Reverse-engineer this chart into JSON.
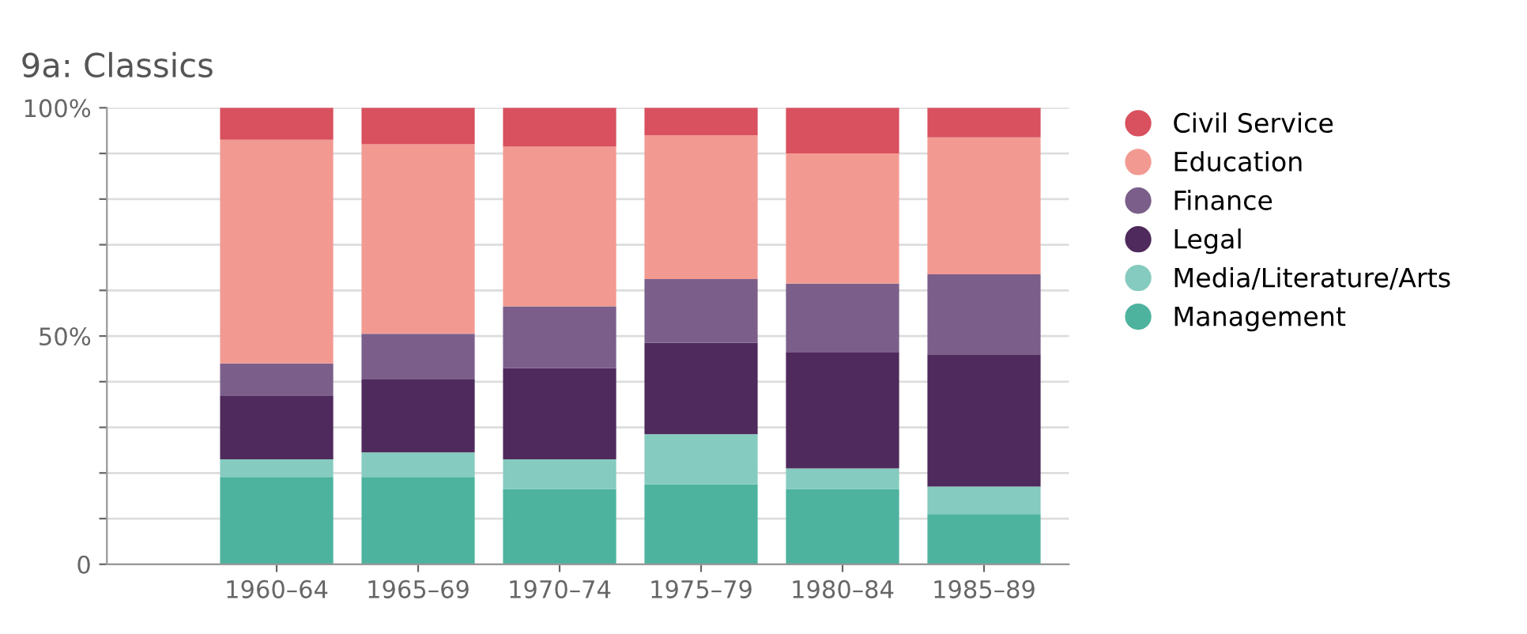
{
  "chart_data": {
    "type": "bar",
    "title": "9a: Classics",
    "stacked": true,
    "categories": [
      "1960–64",
      "1965–69",
      "1970–74",
      "1975–79",
      "1980–84",
      "1985–89"
    ],
    "series": [
      {
        "name": "Management",
        "color": "#4db39e",
        "values": [
          19,
          19,
          16.5,
          17.5,
          16.5,
          11
        ]
      },
      {
        "name": "Media/Literature/Arts",
        "color": "#85cbbf",
        "values": [
          4,
          5.5,
          6.5,
          11,
          4.5,
          6
        ]
      },
      {
        "name": "Legal",
        "color": "#4f2a5c",
        "values": [
          14,
          16,
          20,
          20,
          25.5,
          29
        ]
      },
      {
        "name": "Finance",
        "color": "#7b5f8a",
        "values": [
          7,
          10,
          13.5,
          14,
          15,
          17.5
        ]
      },
      {
        "name": "Education",
        "color": "#f29a92",
        "values": [
          49,
          41.5,
          35,
          31.5,
          28.5,
          30
        ]
      },
      {
        "name": "Civil Service",
        "color": "#d9505e",
        "values": [
          7,
          8,
          8.5,
          6,
          10,
          6.5
        ]
      }
    ],
    "ylim": [
      0,
      100
    ],
    "yticks": [
      {
        "value": 0,
        "label": "0"
      },
      {
        "value": 10,
        "label": null
      },
      {
        "value": 20,
        "label": null
      },
      {
        "value": 30,
        "label": null
      },
      {
        "value": 40,
        "label": null
      },
      {
        "value": 50,
        "label": "50%"
      },
      {
        "value": 60,
        "label": null
      },
      {
        "value": 70,
        "label": null
      },
      {
        "value": 80,
        "label": null
      },
      {
        "value": 90,
        "label": null
      },
      {
        "value": 100,
        "label": "100%"
      }
    ],
    "grid": "y",
    "legend": "right"
  }
}
